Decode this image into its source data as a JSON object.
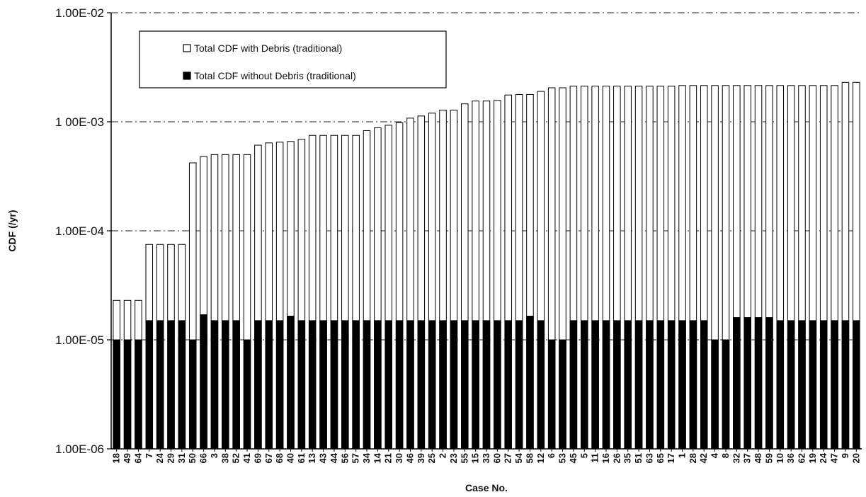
{
  "chart_data": {
    "type": "bar",
    "scale": "log",
    "ylabel": "CDF (/yr)",
    "xlabel": "Case No.",
    "ylim": [
      1e-06,
      0.01
    ],
    "y_ticks": [
      {
        "value": 1e-06,
        "label": "1.00E-06"
      },
      {
        "value": 1e-05,
        "label": "1.00E-05"
      },
      {
        "value": 0.0001,
        "label": "1.00E-04"
      },
      {
        "value": 0.001,
        "label": "1 00E-03"
      },
      {
        "value": 0.01,
        "label": "1.00E-02"
      }
    ],
    "grid": true,
    "legend_position": "top-left",
    "categories": [
      "18",
      "49",
      "64",
      "7",
      "24",
      "29",
      "31",
      "50",
      "66",
      "3",
      "38",
      "52",
      "41",
      "69",
      "67",
      "68",
      "40",
      "61",
      "13",
      "43",
      "44",
      "56",
      "57",
      "34",
      "14",
      "21",
      "30",
      "46",
      "39",
      "25",
      "2",
      "23",
      "55",
      "15",
      "33",
      "60",
      "27",
      "54",
      "58",
      "12",
      "6",
      "53",
      "45",
      "5",
      "11",
      "16",
      "26",
      "35",
      "51",
      "63",
      "65",
      "17",
      "1",
      "28",
      "42",
      "4",
      "8",
      "32",
      "37",
      "48",
      "59",
      "10",
      "36",
      "62",
      "19",
      "24",
      "47",
      "9",
      "20"
    ],
    "series": [
      {
        "name": "Total CDF with Debris (traditional)",
        "color": "#ffffff",
        "values": [
          2.3e-05,
          2.3e-05,
          2.3e-05,
          7.5e-05,
          7.5e-05,
          7.5e-05,
          7.5e-05,
          0.00042,
          0.00048,
          0.0005,
          0.0005,
          0.0005,
          0.0005,
          0.00061,
          0.00064,
          0.00065,
          0.00066,
          0.00069,
          0.00075,
          0.00075,
          0.00075,
          0.00075,
          0.00075,
          0.00083,
          0.00088,
          0.00093,
          0.00098,
          0.00108,
          0.00113,
          0.0012,
          0.00128,
          0.00128,
          0.00146,
          0.00155,
          0.00155,
          0.00157,
          0.00176,
          0.00178,
          0.00178,
          0.0019,
          0.00205,
          0.00205,
          0.00212,
          0.00212,
          0.00212,
          0.00212,
          0.00212,
          0.00212,
          0.00212,
          0.00212,
          0.00212,
          0.00212,
          0.00215,
          0.00215,
          0.00215,
          0.00215,
          0.00215,
          0.00215,
          0.00215,
          0.00215,
          0.00215,
          0.00215,
          0.00215,
          0.00215,
          0.00215,
          0.00215,
          0.00215,
          0.0023,
          0.0023
        ]
      },
      {
        "name": "Total CDF without Debris (traditional)",
        "color": "#000000",
        "values": [
          1e-05,
          1e-05,
          1e-05,
          1.5e-05,
          1.5e-05,
          1.5e-05,
          1.5e-05,
          1e-05,
          1.7e-05,
          1.5e-05,
          1.5e-05,
          1.5e-05,
          1e-05,
          1.5e-05,
          1.5e-05,
          1.5e-05,
          1.65e-05,
          1.5e-05,
          1.5e-05,
          1.5e-05,
          1.5e-05,
          1.5e-05,
          1.5e-05,
          1.5e-05,
          1.5e-05,
          1.5e-05,
          1.5e-05,
          1.5e-05,
          1.5e-05,
          1.5e-05,
          1.5e-05,
          1.5e-05,
          1.5e-05,
          1.5e-05,
          1.5e-05,
          1.5e-05,
          1.5e-05,
          1.5e-05,
          1.65e-05,
          1.5e-05,
          1e-05,
          1e-05,
          1.5e-05,
          1.5e-05,
          1.5e-05,
          1.5e-05,
          1.5e-05,
          1.5e-05,
          1.5e-05,
          1.5e-05,
          1.5e-05,
          1.5e-05,
          1.5e-05,
          1.5e-05,
          1.5e-05,
          1e-05,
          1e-05,
          1.6e-05,
          1.6e-05,
          1.6e-05,
          1.6e-05,
          1.5e-05,
          1.5e-05,
          1.5e-05,
          1.5e-05,
          1.5e-05,
          1.5e-05,
          1.5e-05,
          1.5e-05
        ]
      }
    ]
  }
}
